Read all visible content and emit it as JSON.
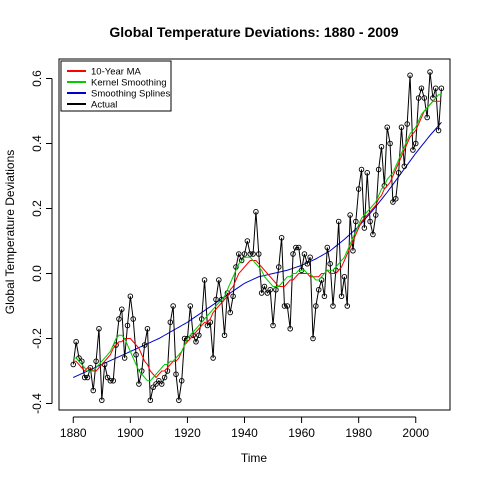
{
  "chart_data": {
    "type": "line",
    "title": "Global Temperature Deviations: 1880 - 2009",
    "xlabel": "Time",
    "ylabel": "Global Temperature Deviations",
    "xlim": [
      1875,
      2012
    ],
    "ylim": [
      -0.42,
      0.66
    ],
    "x_ticks": [
      1880,
      1900,
      1920,
      1940,
      1960,
      1980,
      2000
    ],
    "y_ticks": [
      -0.4,
      -0.2,
      0.0,
      0.2,
      0.4,
      0.6
    ],
    "x_tick_labels": [
      "1880",
      "1900",
      "1920",
      "1940",
      "1960",
      "1980",
      "2000"
    ],
    "y_tick_labels": [
      "-0.4",
      "-0.2",
      "0.0",
      "0.2",
      "0.4",
      "0.6"
    ],
    "legend_position": "top-left",
    "x": [
      1880,
      1881,
      1882,
      1883,
      1884,
      1885,
      1886,
      1887,
      1888,
      1889,
      1890,
      1891,
      1892,
      1893,
      1894,
      1895,
      1896,
      1897,
      1898,
      1899,
      1900,
      1901,
      1902,
      1903,
      1904,
      1905,
      1906,
      1907,
      1908,
      1909,
      1910,
      1911,
      1912,
      1913,
      1914,
      1915,
      1916,
      1917,
      1918,
      1919,
      1920,
      1921,
      1922,
      1923,
      1924,
      1925,
      1926,
      1927,
      1928,
      1929,
      1930,
      1931,
      1932,
      1933,
      1934,
      1935,
      1936,
      1937,
      1938,
      1939,
      1940,
      1941,
      1942,
      1943,
      1944,
      1945,
      1946,
      1947,
      1948,
      1949,
      1950,
      1951,
      1952,
      1953,
      1954,
      1955,
      1956,
      1957,
      1958,
      1959,
      1960,
      1961,
      1962,
      1963,
      1964,
      1965,
      1966,
      1967,
      1968,
      1969,
      1970,
      1971,
      1972,
      1973,
      1974,
      1975,
      1976,
      1977,
      1978,
      1979,
      1980,
      1981,
      1982,
      1983,
      1984,
      1985,
      1986,
      1987,
      1988,
      1989,
      1990,
      1991,
      1992,
      1993,
      1994,
      1995,
      1996,
      1997,
      1998,
      1999,
      2000,
      2001,
      2002,
      2003,
      2004,
      2005,
      2006,
      2007,
      2008,
      2009
    ],
    "series": [
      {
        "name": "Actual",
        "color": "#000000",
        "markers": true,
        "values": [
          -0.28,
          -0.21,
          -0.26,
          -0.27,
          -0.32,
          -0.32,
          -0.29,
          -0.36,
          -0.27,
          -0.17,
          -0.39,
          -0.28,
          -0.32,
          -0.33,
          -0.33,
          -0.22,
          -0.14,
          -0.11,
          -0.26,
          -0.16,
          -0.07,
          -0.14,
          -0.25,
          -0.34,
          -0.3,
          -0.22,
          -0.17,
          -0.39,
          -0.35,
          -0.34,
          -0.33,
          -0.34,
          -0.32,
          -0.3,
          -0.15,
          -0.1,
          -0.31,
          -0.39,
          -0.33,
          -0.2,
          -0.2,
          -0.1,
          -0.19,
          -0.21,
          -0.19,
          -0.14,
          -0.02,
          -0.16,
          -0.15,
          -0.26,
          -0.08,
          -0.02,
          -0.08,
          -0.19,
          -0.06,
          -0.12,
          -0.07,
          0.02,
          0.06,
          0.04,
          0.06,
          0.1,
          0.06,
          0.06,
          0.19,
          0.06,
          -0.06,
          -0.04,
          -0.06,
          -0.05,
          -0.16,
          -0.05,
          0.02,
          0.11,
          -0.1,
          -0.1,
          -0.17,
          0.06,
          0.08,
          0.08,
          0.01,
          0.06,
          0.03,
          0.05,
          -0.2,
          -0.1,
          -0.05,
          -0.02,
          -0.07,
          0.08,
          0.03,
          -0.1,
          0.01,
          0.16,
          -0.07,
          -0.01,
          -0.1,
          0.18,
          0.07,
          0.16,
          0.26,
          0.32,
          0.14,
          0.31,
          0.16,
          0.12,
          0.18,
          0.32,
          0.39,
          0.27,
          0.45,
          0.4,
          0.22,
          0.23,
          0.31,
          0.45,
          0.33,
          0.46,
          0.61,
          0.38,
          0.4,
          0.54,
          0.57,
          0.54,
          0.48,
          0.62,
          0.54,
          0.57,
          0.44,
          0.57
        ]
      },
      {
        "name": "10-Year MA",
        "color": "#ff0000",
        "markers": false,
        "values": [
          -0.27,
          -0.27,
          -0.28,
          -0.29,
          -0.3,
          -0.29,
          -0.29,
          -0.3,
          -0.3,
          -0.29,
          -0.28,
          -0.27,
          -0.26,
          -0.25,
          -0.23,
          -0.22,
          -0.21,
          -0.21,
          -0.2,
          -0.2,
          -0.2,
          -0.21,
          -0.22,
          -0.23,
          -0.25,
          -0.27,
          -0.28,
          -0.3,
          -0.31,
          -0.32,
          -0.31,
          -0.3,
          -0.3,
          -0.29,
          -0.28,
          -0.27,
          -0.27,
          -0.26,
          -0.24,
          -0.22,
          -0.21,
          -0.2,
          -0.19,
          -0.18,
          -0.17,
          -0.16,
          -0.15,
          -0.15,
          -0.14,
          -0.12,
          -0.11,
          -0.1,
          -0.09,
          -0.08,
          -0.07,
          -0.05,
          -0.04,
          -0.02,
          0.0,
          0.01,
          0.02,
          0.03,
          0.04,
          0.04,
          0.04,
          0.03,
          0.02,
          0.01,
          0.0,
          -0.01,
          -0.02,
          -0.03,
          -0.04,
          -0.04,
          -0.04,
          -0.03,
          -0.02,
          -0.02,
          -0.01,
          0.0,
          0.0,
          0.0,
          0.0,
          -0.01,
          -0.01,
          -0.01,
          -0.01,
          0.0,
          0.0,
          0.01,
          0.0,
          0.0,
          0.0,
          0.01,
          0.02,
          0.04,
          0.06,
          0.08,
          0.1,
          0.12,
          0.14,
          0.16,
          0.17,
          0.18,
          0.19,
          0.2,
          0.21,
          0.23,
          0.24,
          0.26,
          0.27,
          0.28,
          0.3,
          0.32,
          0.34,
          0.36,
          0.38,
          0.4,
          0.42,
          0.43,
          0.44,
          0.46,
          0.48,
          0.5,
          0.51,
          0.52,
          0.53,
          0.53,
          0.53,
          0.53
        ]
      },
      {
        "name": "Kernel Smoothing",
        "color": "#00cc00",
        "markers": false,
        "values": [
          -0.26,
          -0.26,
          -0.27,
          -0.28,
          -0.29,
          -0.3,
          -0.3,
          -0.3,
          -0.29,
          -0.28,
          -0.27,
          -0.26,
          -0.25,
          -0.24,
          -0.22,
          -0.2,
          -0.19,
          -0.19,
          -0.2,
          -0.22,
          -0.24,
          -0.26,
          -0.28,
          -0.3,
          -0.31,
          -0.32,
          -0.33,
          -0.33,
          -0.32,
          -0.31,
          -0.3,
          -0.29,
          -0.28,
          -0.28,
          -0.27,
          -0.27,
          -0.26,
          -0.25,
          -0.24,
          -0.22,
          -0.2,
          -0.19,
          -0.18,
          -0.17,
          -0.16,
          -0.15,
          -0.14,
          -0.13,
          -0.12,
          -0.11,
          -0.1,
          -0.09,
          -0.08,
          -0.07,
          -0.05,
          -0.03,
          -0.01,
          0.01,
          0.03,
          0.04,
          0.05,
          0.05,
          0.05,
          0.04,
          0.03,
          0.02,
          0.01,
          -0.01,
          -0.02,
          -0.03,
          -0.04,
          -0.04,
          -0.04,
          -0.03,
          -0.02,
          -0.01,
          -0.01,
          0.0,
          0.0,
          0.01,
          0.01,
          0.01,
          0.0,
          0.0,
          -0.01,
          -0.02,
          -0.02,
          -0.01,
          0.0,
          0.01,
          0.01,
          0.01,
          0.02,
          0.03,
          0.04,
          0.05,
          0.07,
          0.09,
          0.11,
          0.13,
          0.15,
          0.17,
          0.18,
          0.19,
          0.2,
          0.21,
          0.22,
          0.24,
          0.26,
          0.27,
          0.29,
          0.3,
          0.31,
          0.33,
          0.35,
          0.37,
          0.39,
          0.41,
          0.43,
          0.44,
          0.45,
          0.47,
          0.49,
          0.5,
          0.51,
          0.52,
          0.53,
          0.54,
          0.55,
          0.55
        ]
      },
      {
        "name": "Smoothing Splines",
        "color": "#0000cc",
        "markers": false,
        "values": [
          -0.32,
          -0.316,
          -0.312,
          -0.308,
          -0.304,
          -0.3,
          -0.296,
          -0.292,
          -0.288,
          -0.284,
          -0.28,
          -0.276,
          -0.272,
          -0.268,
          -0.264,
          -0.26,
          -0.256,
          -0.252,
          -0.248,
          -0.244,
          -0.24,
          -0.236,
          -0.232,
          -0.228,
          -0.224,
          -0.22,
          -0.216,
          -0.212,
          -0.208,
          -0.204,
          -0.2,
          -0.195,
          -0.19,
          -0.185,
          -0.18,
          -0.175,
          -0.17,
          -0.165,
          -0.16,
          -0.155,
          -0.15,
          -0.144,
          -0.138,
          -0.132,
          -0.126,
          -0.12,
          -0.114,
          -0.108,
          -0.102,
          -0.096,
          -0.09,
          -0.084,
          -0.078,
          -0.072,
          -0.066,
          -0.06,
          -0.054,
          -0.048,
          -0.042,
          -0.036,
          -0.03,
          -0.026,
          -0.022,
          -0.018,
          -0.014,
          -0.01,
          -0.008,
          -0.006,
          -0.004,
          -0.002,
          0.0,
          0.002,
          0.004,
          0.006,
          0.008,
          0.01,
          0.013,
          0.016,
          0.019,
          0.022,
          0.025,
          0.029,
          0.033,
          0.037,
          0.041,
          0.045,
          0.05,
          0.055,
          0.06,
          0.065,
          0.07,
          0.077,
          0.084,
          0.091,
          0.098,
          0.105,
          0.113,
          0.121,
          0.129,
          0.137,
          0.145,
          0.155,
          0.165,
          0.175,
          0.185,
          0.195,
          0.206,
          0.217,
          0.228,
          0.239,
          0.25,
          0.262,
          0.274,
          0.286,
          0.298,
          0.31,
          0.322,
          0.334,
          0.346,
          0.358,
          0.37,
          0.381,
          0.392,
          0.403,
          0.414,
          0.425,
          0.435,
          0.445,
          0.455,
          0.465
        ]
      }
    ]
  }
}
